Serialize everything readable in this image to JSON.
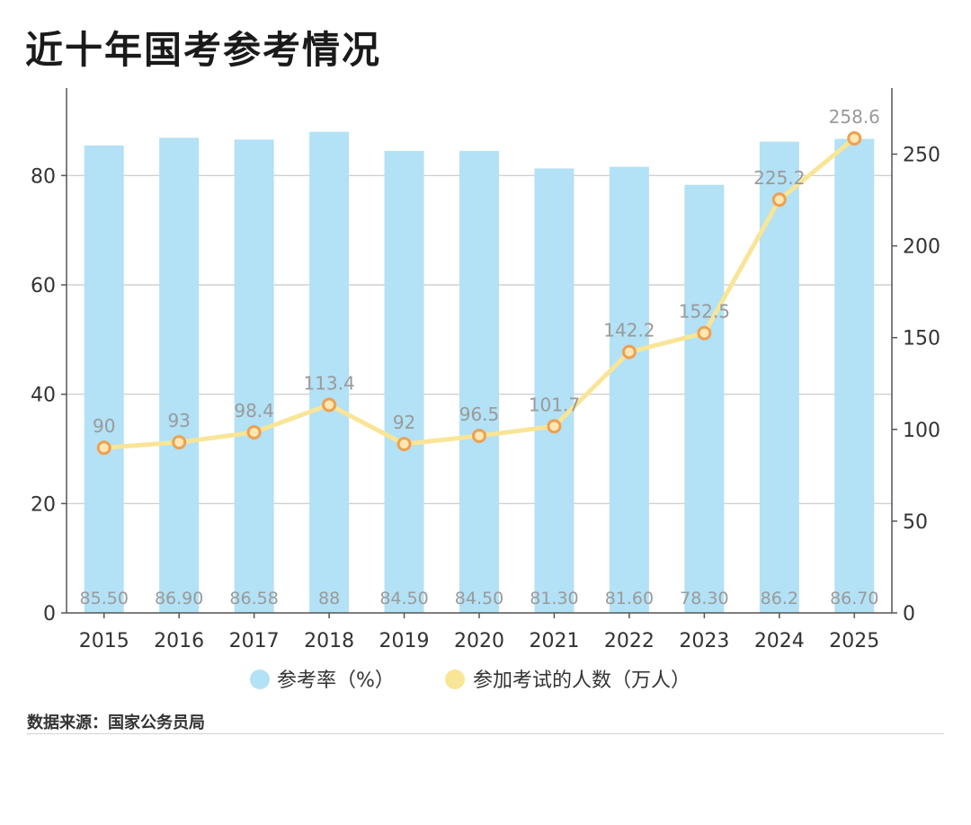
{
  "title": "近十年国考参考情况",
  "source": "数据来源：国家公务员局",
  "colors": {
    "bar": "#b3e1f5",
    "line": "#f9e596",
    "marker_fill": "#fde8b4",
    "marker_stroke": "#f0a050",
    "grid": "#c8c8c8",
    "axis": "#555555",
    "label": "#9a9a9a",
    "legend_bar": "#b3e1f5",
    "legend_line": "#f9e596"
  },
  "chart_data": {
    "type": "bar",
    "categories": [
      "2015",
      "2016",
      "2017",
      "2018",
      "2019",
      "2020",
      "2021",
      "2022",
      "2023",
      "2024",
      "2025"
    ],
    "series": [
      {
        "name": "参考率（%）",
        "type": "bar",
        "axis": "left",
        "values": [
          85.5,
          86.9,
          86.58,
          88,
          84.5,
          84.5,
          81.3,
          81.6,
          78.3,
          86.2,
          86.7
        ],
        "labels": [
          "85.50",
          "86.90",
          "86.58",
          "88",
          "84.50",
          "84.50",
          "81.30",
          "81.60",
          "78.30",
          "86.2",
          "86.70"
        ]
      },
      {
        "name": "参加考试的人数（万人）",
        "type": "line",
        "axis": "right",
        "values": [
          90,
          93,
          98.4,
          113.4,
          92,
          96.5,
          101.7,
          142.2,
          152.5,
          225.2,
          258.6
        ],
        "labels": [
          "90",
          "93",
          "98.4",
          "113.4",
          "92",
          "96.5",
          "101.7",
          "142.2",
          "152.5",
          "225.2",
          "258.6"
        ]
      }
    ],
    "y_left": {
      "range": [
        0,
        96
      ],
      "ticks": [
        0,
        20,
        40,
        60,
        80
      ]
    },
    "y_right": {
      "range": [
        0,
        286
      ],
      "ticks": [
        0,
        50,
        100,
        150,
        200,
        250
      ]
    },
    "grid": true,
    "legend_position": "bottom"
  }
}
